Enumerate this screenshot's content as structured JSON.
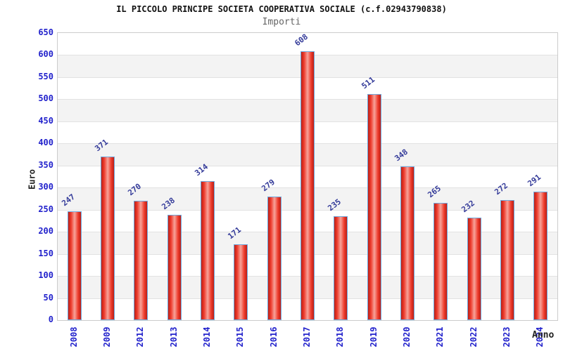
{
  "title": "IL PICCOLO PRINCIPE SOCIETA COOPERATIVA SOCIALE (c.f.02943790838)",
  "subtitle": "Importi",
  "chart_data": {
    "type": "bar",
    "categories": [
      "2008",
      "2009",
      "2012",
      "2013",
      "2014",
      "2015",
      "2016",
      "2017",
      "2018",
      "2019",
      "2020",
      "2021",
      "2022",
      "2023",
      "2024"
    ],
    "values": [
      247,
      371,
      270,
      238,
      314,
      171,
      279,
      608,
      235,
      511,
      348,
      265,
      232,
      272,
      291
    ],
    "title": "Importi",
    "xlabel": "Anno",
    "ylabel": "Euro",
    "ylim": [
      0,
      650
    ],
    "ytick_step": 50,
    "grid": true,
    "legend": "none",
    "colors": {
      "bar_edge": "#bb1f16",
      "bar_mid": "#ee3b2c",
      "bar_highlight": "#f7a39a",
      "bar_border": "#6fa8dc",
      "tick_label": "#2222cc",
      "value_label": "#333a99",
      "band": "#f3f3f3",
      "grid": "#e2e2e2",
      "plot_border": "#cccccc"
    }
  }
}
